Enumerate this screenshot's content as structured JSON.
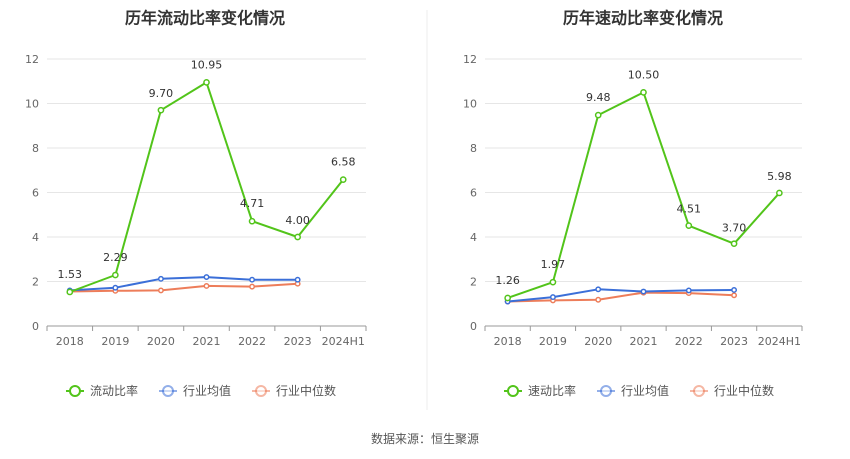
{
  "source_text": "数据来源：恒生聚源",
  "chart_data": [
    {
      "type": "line",
      "title": "历年流动比率变化情况",
      "categories": [
        "2018",
        "2019",
        "2020",
        "2021",
        "2022",
        "2023",
        "2024H1"
      ],
      "ylim": [
        0,
        12
      ],
      "yticks": [
        0,
        2,
        4,
        6,
        8,
        10,
        12
      ],
      "grid": true,
      "legend_position": "bottom",
      "series": [
        {
          "name": "流动比率",
          "color": "#52c41a",
          "labels": true,
          "values": [
            1.53,
            2.29,
            9.7,
            10.95,
            4.71,
            4.0,
            6.58
          ],
          "value_labels": [
            "1.53",
            "2.29",
            "9.70",
            "10.95",
            "4.71",
            "4.00",
            "6.58"
          ]
        },
        {
          "name": "行业均值",
          "color": "#3b6fd8",
          "labels": false,
          "values": [
            1.6,
            1.72,
            2.12,
            2.2,
            2.08,
            2.08,
            null
          ]
        },
        {
          "name": "行业中位数",
          "color": "#ed7d5a",
          "labels": false,
          "values": [
            1.55,
            1.58,
            1.6,
            1.8,
            1.77,
            1.9,
            null
          ]
        }
      ]
    },
    {
      "type": "line",
      "title": "历年速动比率变化情况",
      "categories": [
        "2018",
        "2019",
        "2020",
        "2021",
        "2022",
        "2023",
        "2024H1"
      ],
      "ylim": [
        0,
        12
      ],
      "yticks": [
        0,
        2,
        4,
        6,
        8,
        10,
        12
      ],
      "grid": true,
      "legend_position": "bottom",
      "series": [
        {
          "name": "速动比率",
          "color": "#52c41a",
          "labels": true,
          "values": [
            1.26,
            1.97,
            9.48,
            10.5,
            4.51,
            3.7,
            5.98
          ],
          "value_labels": [
            "1.26",
            "1.97",
            "9.48",
            "10.50",
            "4.51",
            "3.70",
            "5.98"
          ]
        },
        {
          "name": "行业均值",
          "color": "#3b6fd8",
          "labels": false,
          "values": [
            1.1,
            1.3,
            1.65,
            1.55,
            1.6,
            1.62,
            null
          ]
        },
        {
          "name": "行业中位数",
          "color": "#ed7d5a",
          "labels": false,
          "values": [
            1.1,
            1.15,
            1.18,
            1.5,
            1.48,
            1.38,
            null
          ]
        }
      ]
    }
  ]
}
